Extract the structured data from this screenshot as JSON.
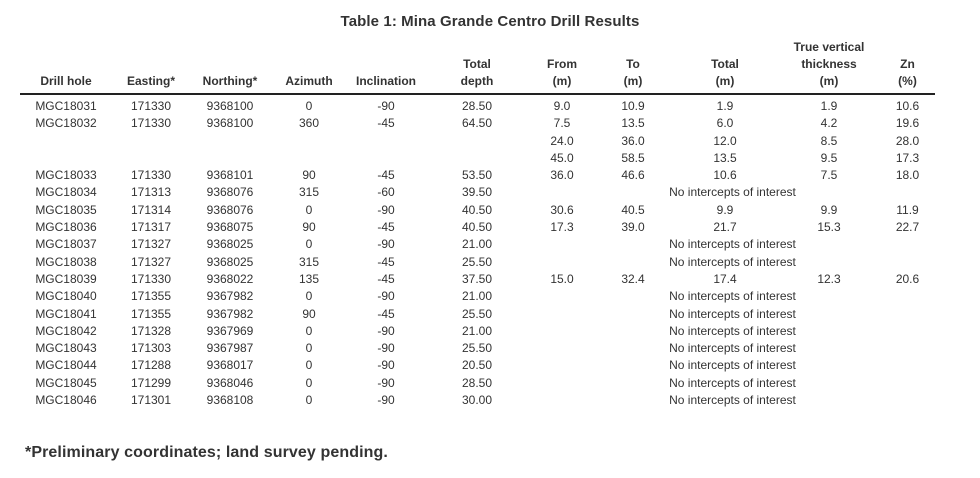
{
  "title": "Table 1: Mina Grande Centro Drill Results",
  "footnote": "*Preliminary coordinates; land survey pending.",
  "table": {
    "no_intercepts_label": "No intercepts of interest",
    "columns": [
      {
        "key": "drill-hole",
        "lines": [
          "Drill hole"
        ]
      },
      {
        "key": "easting",
        "lines": [
          "Easting*"
        ]
      },
      {
        "key": "northing",
        "lines": [
          "Northing*"
        ]
      },
      {
        "key": "azimuth",
        "lines": [
          "Azimuth"
        ]
      },
      {
        "key": "inclination",
        "lines": [
          "Inclination"
        ]
      },
      {
        "key": "total-depth",
        "lines": [
          "Total",
          "depth"
        ]
      },
      {
        "key": "from-m",
        "lines": [
          "From",
          "(m)"
        ]
      },
      {
        "key": "to-m",
        "lines": [
          "To",
          "(m)"
        ]
      },
      {
        "key": "total-m",
        "lines": [
          "Total",
          "(m)"
        ]
      },
      {
        "key": "true-vertical-thickness",
        "lines": [
          "True vertical",
          "thickness",
          "(m)"
        ]
      },
      {
        "key": "zn-pct",
        "lines": [
          "Zn",
          "(%)"
        ]
      }
    ],
    "rows": [
      {
        "cells": [
          "MGC18031",
          "171330",
          "9368100",
          "0",
          "-90",
          "28.50",
          "9.0",
          "10.9",
          "1.9",
          "1.9",
          "10.6"
        ]
      },
      {
        "cells": [
          "MGC18032",
          "171330",
          "9368100",
          "360",
          "-45",
          "64.50",
          "7.5",
          "13.5",
          "6.0",
          "4.2",
          "19.6"
        ]
      },
      {
        "cells": [
          "",
          "",
          "",
          "",
          "",
          "",
          "24.0",
          "36.0",
          "12.0",
          "8.5",
          "28.0"
        ]
      },
      {
        "cells": [
          "",
          "",
          "",
          "",
          "",
          "",
          "45.0",
          "58.5",
          "13.5",
          "9.5",
          "17.3"
        ]
      },
      {
        "cells": [
          "MGC18033",
          "171330",
          "9368101",
          "90",
          "-45",
          "53.50",
          "36.0",
          "46.6",
          "10.6",
          "7.5",
          "18.0"
        ]
      },
      {
        "cells": [
          "MGC18034",
          "171313",
          "9368076",
          "315",
          "-60",
          "39.50"
        ],
        "no_intercepts": true
      },
      {
        "cells": [
          "MGC18035",
          "171314",
          "9368076",
          "0",
          "-90",
          "40.50",
          "30.6",
          "40.5",
          "9.9",
          "9.9",
          "11.9"
        ]
      },
      {
        "cells": [
          "MGC18036",
          "171317",
          "9368075",
          "90",
          "-45",
          "40.50",
          "17.3",
          "39.0",
          "21.7",
          "15.3",
          "22.7"
        ]
      },
      {
        "cells": [
          "MGC18037",
          "171327",
          "9368025",
          "0",
          "-90",
          "21.00"
        ],
        "no_intercepts": true
      },
      {
        "cells": [
          "MGC18038",
          "171327",
          "9368025",
          "315",
          "-45",
          "25.50"
        ],
        "no_intercepts": true
      },
      {
        "cells": [
          "MGC18039",
          "171330",
          "9368022",
          "135",
          "-45",
          "37.50",
          "15.0",
          "32.4",
          "17.4",
          "12.3",
          "20.6"
        ]
      },
      {
        "cells": [
          "MGC18040",
          "171355",
          "9367982",
          "0",
          "-90",
          "21.00"
        ],
        "no_intercepts": true
      },
      {
        "cells": [
          "MGC18041",
          "171355",
          "9367982",
          "90",
          "-45",
          "25.50"
        ],
        "no_intercepts": true
      },
      {
        "cells": [
          "MGC18042",
          "171328",
          "9367969",
          "0",
          "-90",
          "21.00"
        ],
        "no_intercepts": true
      },
      {
        "cells": [
          "MGC18043",
          "171303",
          "9367987",
          "0",
          "-90",
          "25.50"
        ],
        "no_intercepts": true
      },
      {
        "cells": [
          "MGC18044",
          "171288",
          "9368017",
          "0",
          "-90",
          "20.50"
        ],
        "no_intercepts": true
      },
      {
        "cells": [
          "MGC18045",
          "171299",
          "9368046",
          "0",
          "-90",
          "28.50"
        ],
        "no_intercepts": true
      },
      {
        "cells": [
          "MGC18046",
          "171301",
          "9368108",
          "0",
          "-90",
          "30.00"
        ],
        "no_intercepts": true
      }
    ]
  }
}
